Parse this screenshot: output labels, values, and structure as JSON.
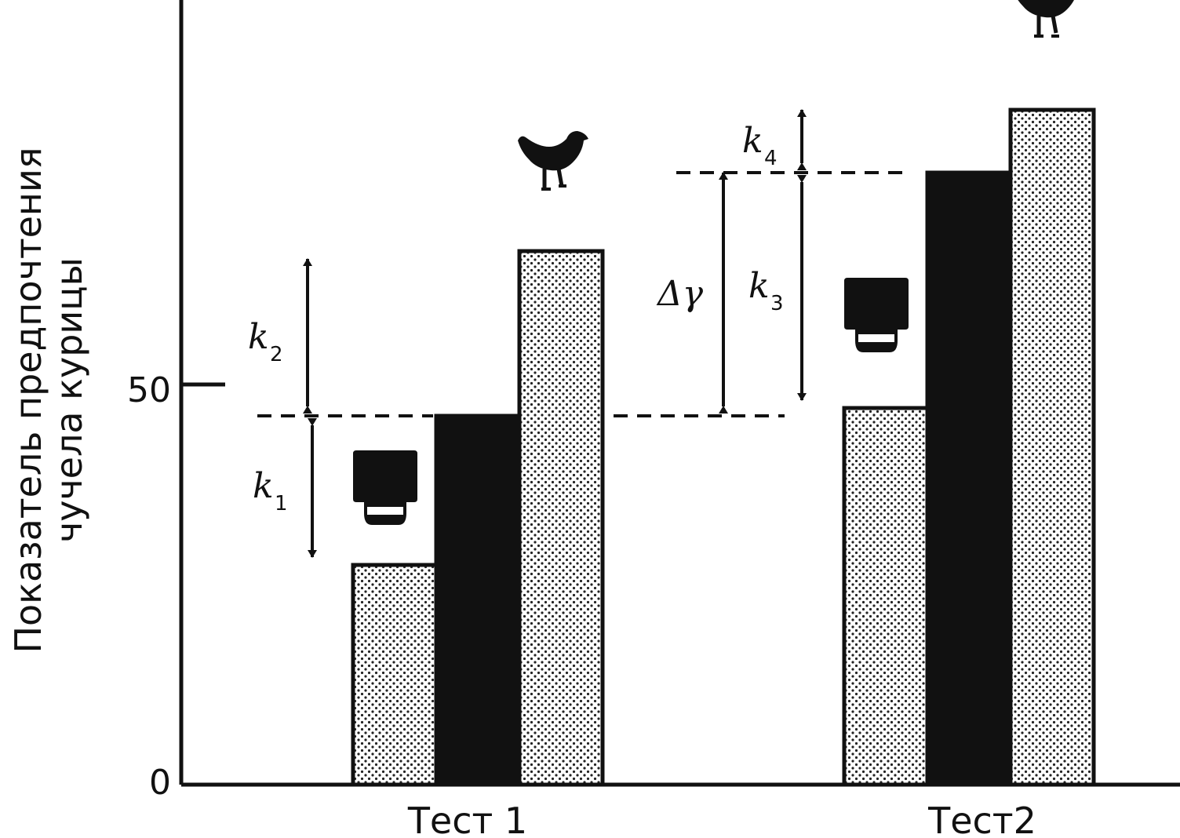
{
  "chart_data": {
    "type": "bar",
    "title": "",
    "ylabel": [
      "Показатель предпочтения",
      "чучела курицы"
    ],
    "xlabel": "",
    "ylim": [
      0,
      100
    ],
    "yticks": [
      {
        "value": 0,
        "label": "0"
      },
      {
        "value": 50,
        "label": "50"
      }
    ],
    "categories": [
      "Тест 1",
      "Тест2"
    ],
    "series_styles": [
      "dotted",
      "black",
      "dotted"
    ],
    "bars": [
      [
        28,
        47,
        68
      ],
      [
        48,
        78,
        86
      ]
    ],
    "reference_levels": [
      47,
      78
    ],
    "annotations": [
      {
        "text": "k",
        "sub": "1",
        "from": 47,
        "to": 29
      },
      {
        "text": "k",
        "sub": "2",
        "from": 47,
        "to": 67
      },
      {
        "text": "Δγ",
        "sub": "",
        "from": 47,
        "to": 78
      },
      {
        "text": "k",
        "sub": "3",
        "from": 78,
        "to": 49
      },
      {
        "text": "k",
        "sub": "4",
        "from": 78,
        "to": 86
      }
    ],
    "icons": [
      "box-icon",
      "hen-icon",
      "box-icon",
      "hen-icon"
    ]
  }
}
